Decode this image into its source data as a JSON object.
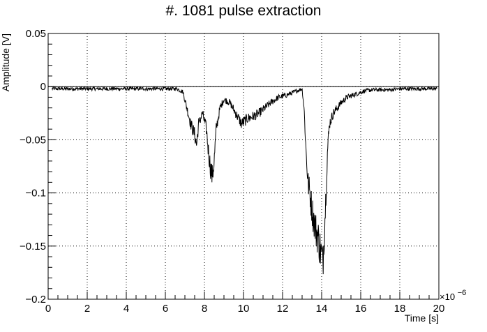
{
  "chart_data": {
    "type": "line",
    "title": "#. 1081 pulse extraction",
    "xlabel": "Time [s]",
    "ylabel": "Amplitude [V]",
    "x_exponent_label": "×10",
    "x_exponent_power": "−6",
    "xlim": [
      0,
      20
    ],
    "ylim": [
      -0.2,
      0.05
    ],
    "x_ticks": [
      0,
      2,
      4,
      6,
      8,
      10,
      12,
      14,
      16,
      18,
      20
    ],
    "x_tick_labels": [
      "0",
      "2",
      "4",
      "6",
      "8",
      "10",
      "12",
      "14",
      "16",
      "18",
      "20"
    ],
    "y_ticks": [
      0.05,
      0,
      -0.05,
      -0.1,
      -0.15,
      -0.2
    ],
    "y_tick_labels": [
      "0.05",
      "0",
      "−0.05",
      "−0.1",
      "−0.15",
      "−0.2"
    ],
    "grid": true,
    "baseline_y": 0,
    "series": [
      {
        "color": "#000000",
        "x": [
          0.2,
          1.0,
          2.0,
          3.0,
          4.0,
          5.0,
          6.0,
          6.6,
          6.9,
          7.1,
          7.3,
          7.5,
          7.6,
          7.7,
          7.9,
          8.1,
          8.2,
          8.3,
          8.4,
          8.5,
          8.6,
          8.8,
          9.0,
          9.3,
          9.6,
          9.9,
          10.2,
          10.5,
          10.8,
          11.1,
          11.4,
          11.8,
          12.2,
          12.6,
          13.0,
          13.1,
          13.2,
          13.3,
          13.4,
          13.5,
          13.6,
          13.7,
          13.8,
          13.9,
          14.0,
          14.05,
          14.1,
          14.2,
          14.3,
          14.4,
          14.6,
          14.8,
          15.0,
          15.3,
          15.6,
          15.9,
          16.2,
          16.6,
          17.0,
          17.5,
          18.0,
          18.5,
          19.0,
          19.5,
          19.9
        ],
        "y": [
          -0.002,
          -0.002,
          -0.002,
          -0.002,
          -0.002,
          -0.002,
          -0.002,
          -0.002,
          -0.005,
          -0.02,
          -0.035,
          -0.045,
          -0.055,
          -0.035,
          -0.025,
          -0.04,
          -0.06,
          -0.075,
          -0.085,
          -0.07,
          -0.04,
          -0.02,
          -0.012,
          -0.015,
          -0.025,
          -0.035,
          -0.03,
          -0.028,
          -0.025,
          -0.02,
          -0.015,
          -0.01,
          -0.008,
          -0.005,
          -0.002,
          -0.02,
          -0.06,
          -0.09,
          -0.1,
          -0.115,
          -0.125,
          -0.135,
          -0.14,
          -0.15,
          -0.16,
          -0.168,
          -0.15,
          -0.11,
          -0.06,
          -0.035,
          -0.025,
          -0.02,
          -0.015,
          -0.01,
          -0.008,
          -0.006,
          -0.004,
          -0.003,
          -0.003,
          -0.003,
          -0.002,
          -0.002,
          -0.002,
          -0.002,
          -0.002
        ]
      }
    ]
  }
}
